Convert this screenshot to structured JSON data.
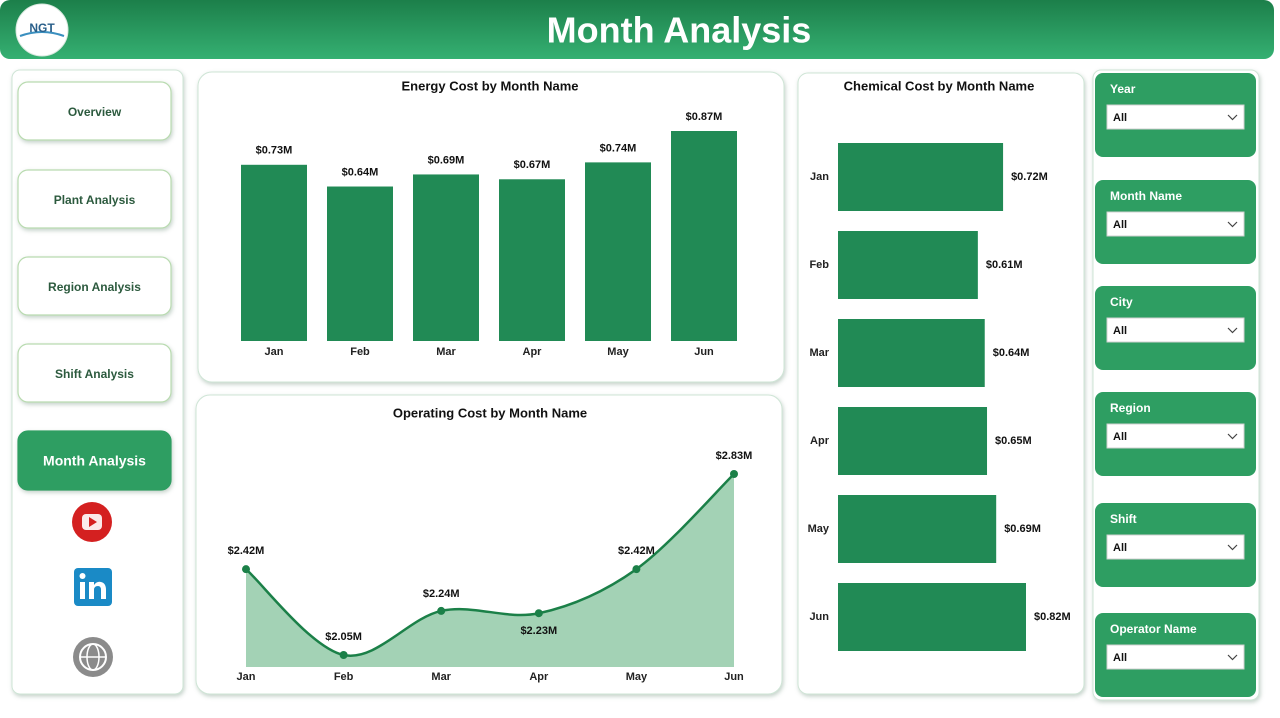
{
  "header": {
    "logo": "NGT",
    "title": "Month Analysis"
  },
  "nav": {
    "items": [
      "Overview",
      "Plant Analysis",
      "Region Analysis",
      "Shift Analysis",
      "Month Analysis"
    ],
    "active": 4
  },
  "filters": [
    {
      "label": "Year",
      "value": "All"
    },
    {
      "label": "Month Name",
      "value": "All"
    },
    {
      "label": "City",
      "value": "All"
    },
    {
      "label": "Region",
      "value": "All"
    },
    {
      "label": "Shift",
      "value": "All"
    },
    {
      "label": "Operator Name",
      "value": "All"
    }
  ],
  "chart_data": [
    {
      "type": "bar",
      "title": "Energy Cost by Month Name",
      "categories": [
        "Jan",
        "Feb",
        "Mar",
        "Apr",
        "May",
        "Jun"
      ],
      "values": [
        0.73,
        0.64,
        0.69,
        0.67,
        0.74,
        0.87
      ],
      "value_labels": [
        "$0.73M",
        "$0.64M",
        "$0.69M",
        "$0.67M",
        "$0.74M",
        "$0.87M"
      ],
      "color": "#218a55"
    },
    {
      "type": "area",
      "title": "Operating Cost by Month Name",
      "categories": [
        "Jan",
        "Feb",
        "Mar",
        "Apr",
        "May",
        "Jun"
      ],
      "values": [
        2.42,
        2.05,
        2.24,
        2.23,
        2.42,
        2.83
      ],
      "value_labels": [
        "$2.42M",
        "$2.05M",
        "$2.24M",
        "$2.23M",
        "$2.42M",
        "$2.83M"
      ],
      "color": "#1b8048",
      "fill": "#a3d2b5"
    },
    {
      "type": "bar",
      "orientation": "horizontal",
      "title": "Chemical Cost by Month Name",
      "categories": [
        "Jan",
        "Feb",
        "Mar",
        "Apr",
        "May",
        "Jun"
      ],
      "values": [
        0.72,
        0.61,
        0.64,
        0.65,
        0.69,
        0.82
      ],
      "value_labels": [
        "$0.72M",
        "$0.61M",
        "$0.64M",
        "$0.65M",
        "$0.69M",
        "$0.82M"
      ],
      "color": "#218a55"
    }
  ]
}
